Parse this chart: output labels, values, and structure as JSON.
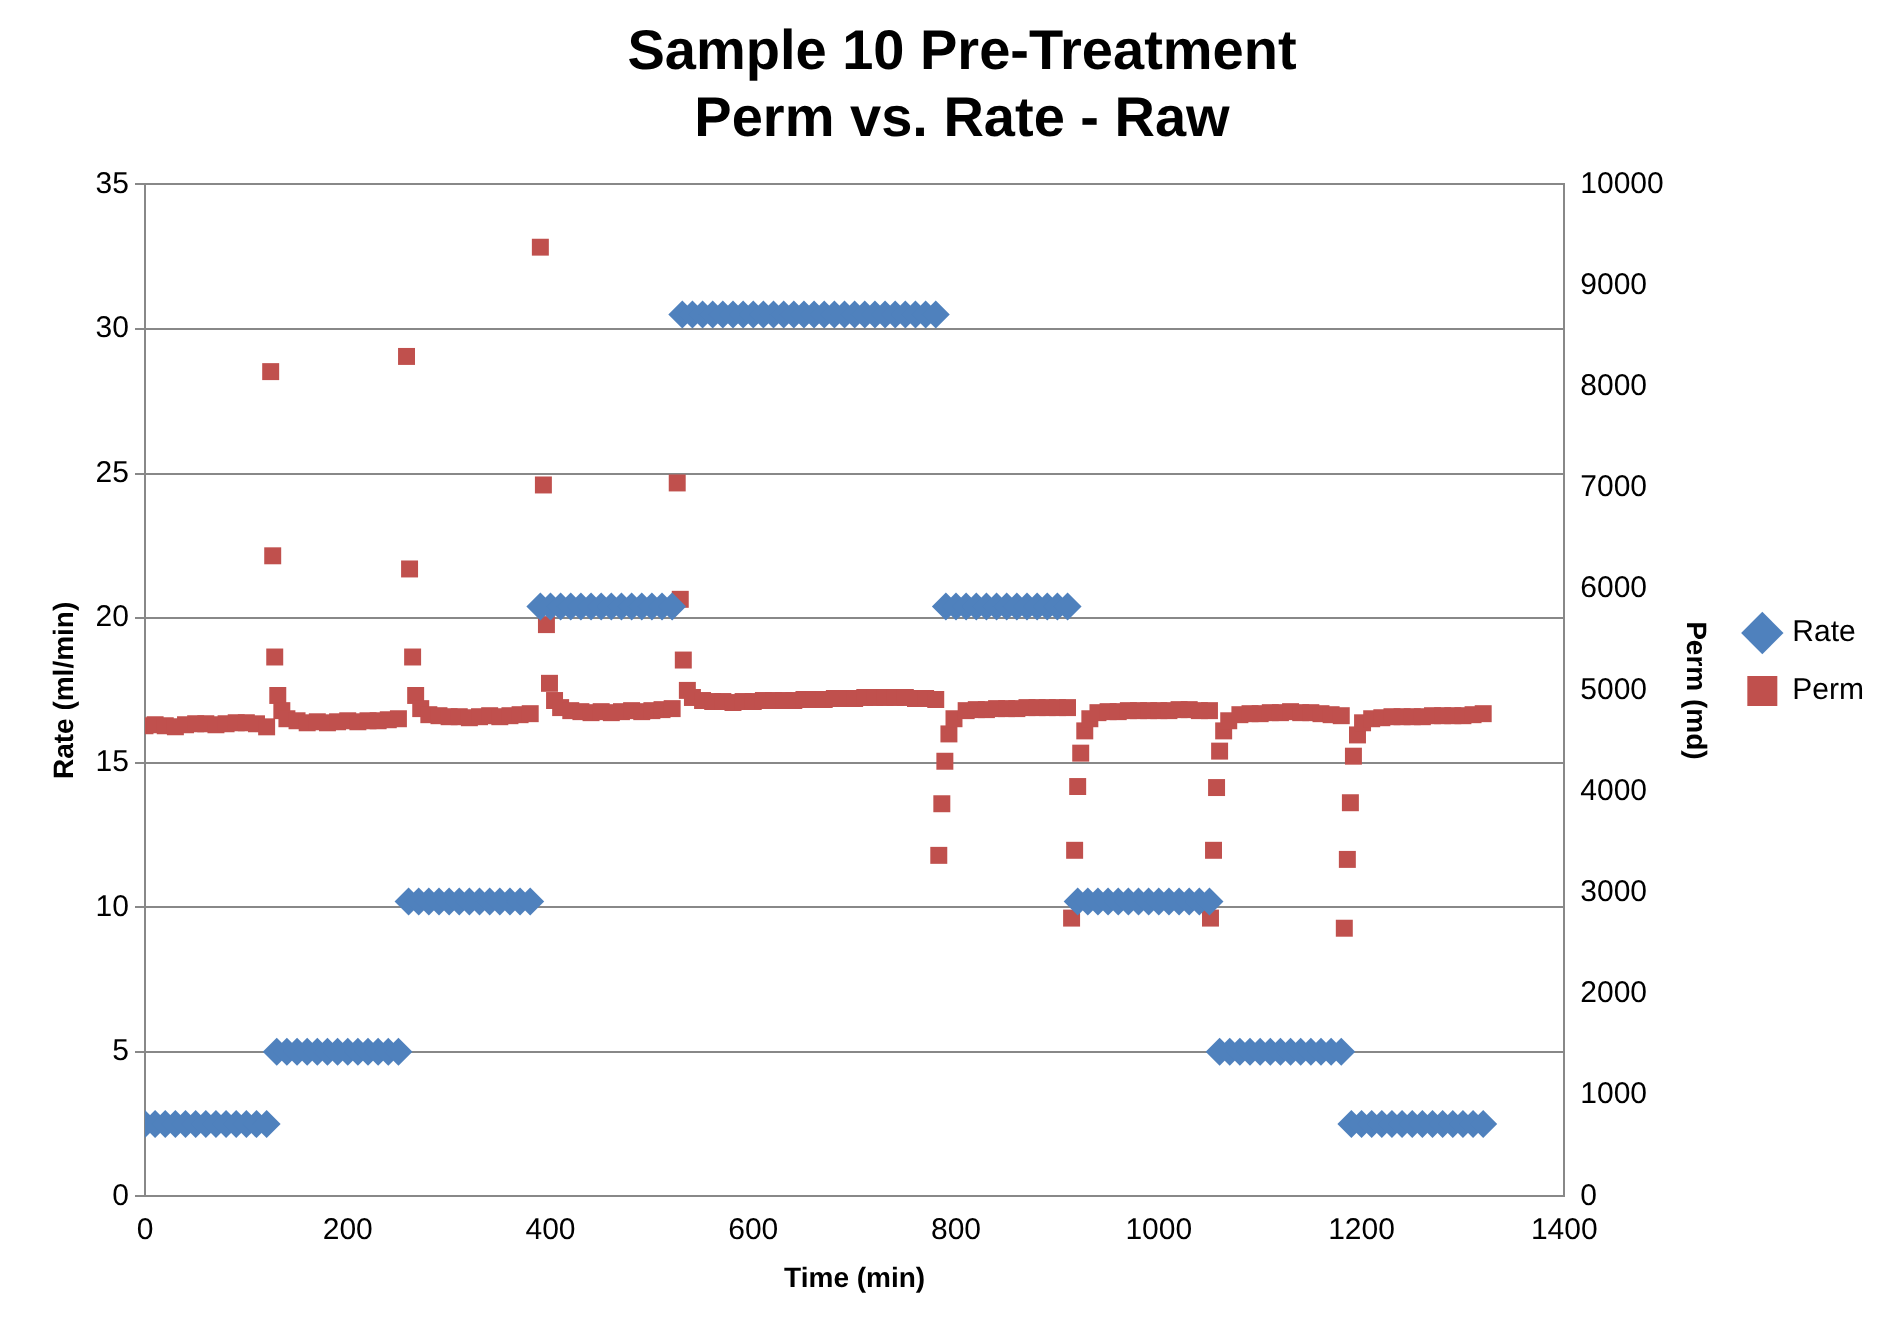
{
  "chart_data": {
    "type": "scatter",
    "title": "Sample 10 Pre-Treatment\nPerm vs. Rate - Raw",
    "xlabel": "Time (min)",
    "ylabel": "Rate (ml/min)",
    "y2label": "Perm (md)",
    "xlim": [
      0,
      1400
    ],
    "xticks": [
      0,
      200,
      400,
      600,
      800,
      1000,
      1200,
      1400
    ],
    "ylim": [
      0,
      35
    ],
    "yticks": [
      0,
      5,
      10,
      15,
      20,
      25,
      30,
      35
    ],
    "y2lim": [
      0,
      10000
    ],
    "y2ticks": [
      0,
      1000,
      2000,
      3000,
      4000,
      5000,
      6000,
      7000,
      8000,
      9000,
      10000
    ],
    "grid": "y",
    "legend": "right",
    "series": [
      {
        "name": "Rate",
        "color": "#4f81bd",
        "marker": "diamond",
        "x": [
          0,
          10,
          20,
          30,
          40,
          50,
          60,
          70,
          80,
          90,
          100,
          110,
          120,
          130,
          140,
          150,
          160,
          170,
          180,
          190,
          200,
          210,
          220,
          230,
          240,
          250,
          260,
          270,
          280,
          290,
          300,
          310,
          320,
          330,
          340,
          350,
          360,
          370,
          380,
          390,
          400,
          410,
          420,
          430,
          440,
          450,
          460,
          470,
          480,
          490,
          500,
          510,
          520,
          530,
          540,
          550,
          560,
          570,
          580,
          590,
          600,
          610,
          620,
          630,
          640,
          650,
          660,
          670,
          680,
          690,
          700,
          710,
          720,
          730,
          740,
          750,
          760,
          770,
          780,
          790,
          800,
          810,
          820,
          830,
          840,
          850,
          860,
          870,
          880,
          890,
          900,
          910,
          920,
          930,
          940,
          950,
          960,
          970,
          980,
          990,
          1000,
          1010,
          1020,
          1030,
          1040,
          1050,
          1060,
          1070,
          1080,
          1090,
          1100,
          1110,
          1120,
          1130,
          1140,
          1150,
          1160,
          1170,
          1180,
          1190,
          1200,
          1210,
          1220,
          1230,
          1240,
          1250,
          1260,
          1270,
          1280,
          1290,
          1300,
          1310,
          1320
        ],
        "values": [
          2.5,
          2.5,
          2.5,
          2.5,
          2.5,
          2.5,
          2.5,
          2.5,
          2.5,
          2.5,
          2.5,
          2.5,
          2.5,
          5,
          5,
          5,
          5,
          5,
          5,
          5,
          5,
          5,
          5,
          5,
          5,
          5,
          10.2,
          10.2,
          10.2,
          10.2,
          10.2,
          10.2,
          10.2,
          10.2,
          10.2,
          10.2,
          10.2,
          10.2,
          10.2,
          20.4,
          20.4,
          20.4,
          20.4,
          20.4,
          20.4,
          20.4,
          20.4,
          20.4,
          20.4,
          20.4,
          20.4,
          20.4,
          20.4,
          30.5,
          30.5,
          30.5,
          30.5,
          30.5,
          30.5,
          30.5,
          30.5,
          30.5,
          30.5,
          30.5,
          30.5,
          30.5,
          30.5,
          30.5,
          30.5,
          30.5,
          30.5,
          30.5,
          30.5,
          30.5,
          30.5,
          30.5,
          30.5,
          30.5,
          30.5,
          20.4,
          20.4,
          20.4,
          20.4,
          20.4,
          20.4,
          20.4,
          20.4,
          20.4,
          20.4,
          20.4,
          20.4,
          20.4,
          10.2,
          10.2,
          10.2,
          10.2,
          10.2,
          10.2,
          10.2,
          10.2,
          10.2,
          10.2,
          10.2,
          10.2,
          10.2,
          10.2,
          5,
          5,
          5,
          5,
          5,
          5,
          5,
          5,
          5,
          5,
          5,
          5,
          5,
          2.5,
          2.5,
          2.5,
          2.5,
          2.5,
          2.5,
          2.5,
          2.5,
          2.5,
          2.5,
          2.5,
          2.5,
          2.5,
          2.5
        ]
      },
      {
        "name": "Perm",
        "color": "#c0504d",
        "marker": "square",
        "axis": "y2",
        "x": [
          0,
          10,
          20,
          30,
          40,
          50,
          60,
          70,
          80,
          90,
          100,
          110,
          120,
          124,
          126,
          128,
          131,
          135,
          140,
          150,
          160,
          170,
          180,
          190,
          200,
          210,
          220,
          230,
          240,
          250,
          258,
          261,
          264,
          267,
          272,
          280,
          290,
          300,
          310,
          320,
          330,
          340,
          350,
          360,
          370,
          380,
          390,
          393,
          396,
          399,
          404,
          410,
          420,
          430,
          440,
          450,
          460,
          470,
          480,
          490,
          500,
          510,
          520,
          525,
          528,
          531,
          535,
          540,
          550,
          560,
          570,
          580,
          590,
          600,
          610,
          620,
          630,
          640,
          650,
          660,
          670,
          680,
          690,
          700,
          710,
          720,
          730,
          740,
          750,
          760,
          770,
          780,
          783,
          786,
          789,
          793,
          798,
          810,
          820,
          830,
          840,
          850,
          860,
          870,
          880,
          890,
          900,
          910,
          914,
          917,
          920,
          923,
          927,
          932,
          940,
          950,
          960,
          970,
          980,
          990,
          1000,
          1010,
          1020,
          1030,
          1040,
          1050,
          1051,
          1054,
          1057,
          1060,
          1064,
          1069,
          1080,
          1090,
          1100,
          1110,
          1120,
          1130,
          1140,
          1150,
          1160,
          1170,
          1180,
          1183,
          1186,
          1189,
          1192,
          1196,
          1201,
          1210,
          1220,
          1230,
          1240,
          1250,
          1260,
          1270,
          1280,
          1290,
          1300,
          1310,
          1320
        ],
        "values": [
          4650,
          4660,
          4650,
          4640,
          4660,
          4670,
          4670,
          4660,
          4670,
          4680,
          4680,
          4670,
          4640,
          8150,
          6330,
          5330,
          4950,
          4800,
          4720,
          4700,
          4680,
          4690,
          4680,
          4690,
          4700,
          4690,
          4700,
          4700,
          4710,
          4720,
          8300,
          6200,
          5330,
          4950,
          4820,
          4760,
          4750,
          4740,
          4740,
          4730,
          4740,
          4750,
          4740,
          4750,
          4760,
          4770,
          9380,
          7030,
          5650,
          5070,
          4900,
          4830,
          4800,
          4790,
          4780,
          4790,
          4780,
          4790,
          4800,
          4790,
          4800,
          4810,
          4820,
          7050,
          5900,
          5300,
          5000,
          4930,
          4900,
          4890,
          4890,
          4880,
          4890,
          4890,
          4900,
          4900,
          4900,
          4900,
          4910,
          4910,
          4910,
          4920,
          4920,
          4920,
          4930,
          4930,
          4930,
          4930,
          4930,
          4920,
          4920,
          4910,
          3370,
          3880,
          4300,
          4570,
          4720,
          4800,
          4810,
          4810,
          4820,
          4820,
          4820,
          4830,
          4830,
          4830,
          4830,
          4830,
          2750,
          3420,
          4050,
          4380,
          4600,
          4720,
          4780,
          4790,
          4790,
          4800,
          4800,
          4800,
          4800,
          4800,
          4810,
          4810,
          4800,
          4800,
          2750,
          3420,
          4040,
          4400,
          4600,
          4700,
          4760,
          4770,
          4770,
          4780,
          4780,
          4790,
          4780,
          4780,
          4770,
          4760,
          4750,
          2650,
          3330,
          3890,
          4350,
          4560,
          4680,
          4720,
          4730,
          4740,
          4740,
          4740,
          4740,
          4750,
          4750,
          4750,
          4750,
          4760,
          4770
        ]
      }
    ]
  }
}
